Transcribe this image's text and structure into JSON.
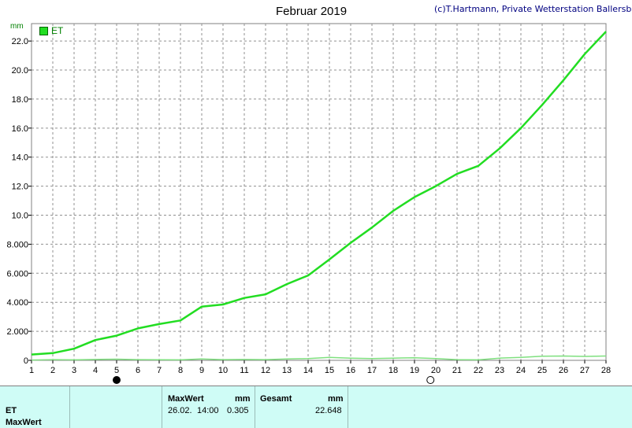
{
  "header": {
    "title": "Februar 2019",
    "copyright": "(c)T.Hartmann, Private Wetterstation Ballersbach",
    "unit": "mm"
  },
  "chart_data": {
    "type": "line",
    "title": "Februar 2019",
    "ylabel": "mm",
    "xlim": [
      1,
      28
    ],
    "ylim": [
      0,
      23.2
    ],
    "grid": true,
    "legend_position": "top-left",
    "x_ticks": [
      "1",
      "2",
      "3",
      "4",
      "5",
      "6",
      "7",
      "8",
      "9",
      "10",
      "11",
      "12",
      "13",
      "14",
      "15",
      "16",
      "17",
      "18",
      "19",
      "20",
      "21",
      "22",
      "23",
      "24",
      "25",
      "26",
      "27",
      "28"
    ],
    "y_ticks": [
      "0",
      "2.000",
      "4.000",
      "6.000",
      "8.000",
      "10.0",
      "12.0",
      "14.0",
      "16.0",
      "18.0",
      "20.0",
      "22.0"
    ],
    "y_tick_values": [
      0,
      2,
      4,
      6,
      8,
      10,
      12,
      14,
      16,
      18,
      20,
      22
    ],
    "series": [
      {
        "name": "ET",
        "color": "#22dd22",
        "x": [
          1,
          2,
          3,
          4,
          5,
          6,
          7,
          8,
          9,
          10,
          11,
          12,
          13,
          14,
          15,
          16,
          17,
          18,
          19,
          20,
          21,
          22,
          23,
          24,
          25,
          26,
          27,
          28
        ],
        "values": [
          0.4,
          0.5,
          0.8,
          1.4,
          1.7,
          2.2,
          2.5,
          2.75,
          3.7,
          3.85,
          4.3,
          4.55,
          5.25,
          5.85,
          6.95,
          8.1,
          9.15,
          10.3,
          11.25,
          12.0,
          12.85,
          13.4,
          14.6,
          16.0,
          17.6,
          19.3,
          21.1,
          22.65
        ]
      },
      {
        "name": "",
        "color": "#7fe07f",
        "x": [
          1,
          2,
          3,
          4,
          5,
          6,
          7,
          8,
          9,
          10,
          11,
          12,
          13,
          14,
          15,
          16,
          17,
          18,
          19,
          20,
          21,
          22,
          23,
          24,
          25,
          26,
          27,
          28
        ],
        "values": [
          0.02,
          0.05,
          0.03,
          0.06,
          0.08,
          0.05,
          0.04,
          0.03,
          0.1,
          0.05,
          0.06,
          0.05,
          0.1,
          0.12,
          0.2,
          0.15,
          0.12,
          0.15,
          0.18,
          0.12,
          0.05,
          0.03,
          0.15,
          0.2,
          0.28,
          0.3,
          0.27,
          0.3
        ]
      }
    ],
    "moon_phases": [
      {
        "day": 5,
        "phase": "new"
      },
      {
        "day": 19.75,
        "phase": "full"
      }
    ]
  },
  "panel": {
    "row1": "ET",
    "row2": "MaxWert",
    "max_header": "MaxWert",
    "max_unit": "mm",
    "max_date": "26.02.",
    "max_time": "14:00",
    "max_value": "0.305",
    "total_header": "Gesamt",
    "total_unit": "mm",
    "total_value": "22.648"
  }
}
